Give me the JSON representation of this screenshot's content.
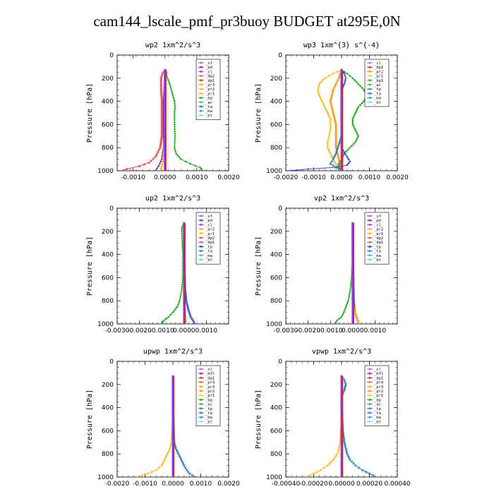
{
  "page_title": "cam144_lscale_pmf_pr3buoy  BUDGET at295E,0N",
  "colors": {
    "sf": "#6a3aa0",
    "pd": "#7b1fa2",
    "cl": "#9b30ff",
    "mfl": "#7b1fa2",
    "dp1": "#c62828",
    "dp2": "#e53935",
    "pr1": "#ffb300",
    "pr2": "#ff8c00",
    "pr3": "#ffa000",
    "pr4": "#d84315",
    "bp": "#1aa01a",
    "ac": "#2ea82e",
    "tp": "#1f3fbf",
    "ta": "#1f77b4",
    "ma": "#2b8fbf",
    "bt": "#40e0e0",
    "bp1": "#2aa52a"
  },
  "chart_data": [
    {
      "type": "line",
      "title": "wp2  1xm^2/s^3",
      "ylabel": "Pressure [hPa]",
      "xlim": [
        -0.0015,
        0.002
      ],
      "ylim": [
        1000,
        0
      ],
      "xticks": [
        -0.001,
        0.0,
        0.001,
        0.002
      ],
      "xticklabels": [
        "-0.0010",
        "0.0000",
        "0.0010",
        "0.0020"
      ],
      "yticks": [
        0,
        200,
        400,
        600,
        800,
        1000
      ],
      "legend": [
        "_sf",
        "_pd",
        "_cl",
        "_dp2",
        "_dp1",
        "_pr3",
        "_pr2",
        "_pr1",
        "_bp",
        "_ac",
        "_ta",
        "_ma",
        "_bt"
      ],
      "legend_position": "top-right",
      "series": [
        {
          "name": "_pd",
          "color_key": "pd",
          "p": [
            130,
            160,
            200,
            300,
            400,
            500,
            600,
            700,
            800,
            900,
            960,
            1000
          ],
          "x": [
            3e-05,
            5e-05,
            0.0,
            -3e-05,
            -5e-05,
            -5e-05,
            -5e-05,
            -5e-05,
            -5e-05,
            -0.0001,
            -0.0002,
            -0.0003
          ]
        },
        {
          "name": "_dp2",
          "color_key": "dp2",
          "p": [
            130,
            160,
            200,
            300,
            400,
            500,
            600,
            700,
            800,
            880,
            930,
            960,
            985,
            1000
          ],
          "x": [
            0.0,
            -8e-05,
            -0.00012,
            -0.00012,
            -0.0001,
            -0.0001,
            -0.0001,
            -0.0001,
            -0.00015,
            -0.0003,
            -0.0005,
            -0.0008,
            -0.0012,
            -0.0014
          ]
        },
        {
          "name": "_pr1",
          "color_key": "pr1",
          "p": [
            130,
            200,
            400,
            600,
            800,
            900,
            960,
            1000
          ],
          "x": [
            0.0,
            0.0,
            0.0,
            0.0,
            -3e-05,
            -5e-05,
            -0.0001,
            -0.00015
          ]
        },
        {
          "name": "_bp",
          "color_key": "bp",
          "p": [
            130,
            160,
            200,
            250,
            300,
            350,
            400,
            450,
            500,
            600,
            700,
            800,
            850,
            900,
            940,
            970,
            1000
          ],
          "x": [
            0.0,
            3e-05,
            8e-05,
            0.00015,
            0.0002,
            0.00025,
            0.0003,
            0.00032,
            0.0003,
            0.0003,
            0.00032,
            0.0003,
            0.00035,
            0.0005,
            0.0008,
            0.0011,
            0.0012
          ]
        },
        {
          "name": "_ta",
          "color_key": "ta",
          "p": [
            130,
            400,
            800,
            950,
            1000
          ],
          "x": [
            0.0,
            0.0,
            0.0,
            0.0,
            0.0
          ]
        },
        {
          "name": "_bt",
          "color_key": "bt",
          "p": [
            130,
            400,
            800,
            1000
          ],
          "x": [
            0.0,
            0.0,
            0.0,
            0.0
          ]
        },
        {
          "name": "_sf",
          "color_key": "sf",
          "p": [
            130,
            400,
            700,
            1000
          ],
          "x": [
            0.0,
            0.0,
            0.0,
            0.0
          ]
        }
      ]
    },
    {
      "type": "line",
      "title": "wp3  1xm^{3} s^{-4}",
      "ylabel": "Pressure [hPa]",
      "xlim": [
        -0.002,
        0.002
      ],
      "ylim": [
        1000,
        0
      ],
      "xticks": [
        -0.002,
        -0.001,
        0.0,
        0.001,
        0.002
      ],
      "xticklabels": [
        "-0.0020",
        "-0.0010",
        "0.0000",
        "0.0010",
        "0.0020"
      ],
      "yticks": [
        0,
        200,
        400,
        600,
        800,
        1000
      ],
      "legend": [
        "_cl",
        "_dp1",
        "_pr2",
        "_pr1",
        "_bp1",
        "_ac",
        "_tp",
        "_ta",
        "_ma",
        "_bt"
      ],
      "legend_position": "top-right",
      "series": [
        {
          "name": "_pr1",
          "color_key": "pr1",
          "p": [
            130,
            160,
            200,
            250,
            300,
            350,
            400,
            450,
            500,
            550,
            600,
            650,
            700,
            750,
            800,
            850,
            900,
            940,
            970,
            1000
          ],
          "x": [
            0.0,
            -0.0003,
            -0.0006,
            -0.0008,
            -0.00085,
            -0.0008,
            -0.0007,
            -0.0006,
            -0.0005,
            -0.0004,
            -0.0004,
            -0.0004,
            -0.00045,
            -0.0005,
            -0.0005,
            -0.0004,
            -0.0003,
            -0.0002,
            -0.0001,
            0.0
          ]
        },
        {
          "name": "_pr2",
          "color_key": "pr2",
          "p": [
            130,
            200,
            300,
            400,
            500,
            600,
            700,
            800,
            900,
            1000
          ],
          "x": [
            0.0,
            -0.0001,
            -0.0003,
            -0.0004,
            -0.0003,
            -0.0002,
            -0.0002,
            -0.0002,
            -0.0001,
            0.0
          ]
        },
        {
          "name": "_ac",
          "color_key": "ac",
          "p": [
            130,
            160,
            200,
            250,
            300,
            350,
            400,
            450,
            500,
            550,
            600,
            650,
            700,
            750,
            800,
            850,
            900,
            940,
            970,
            1000
          ],
          "x": [
            0.0,
            0.0002,
            0.0004,
            0.0006,
            0.0008,
            0.0009,
            0.0008,
            0.0006,
            0.0005,
            0.0004,
            0.0004,
            0.0005,
            0.0006,
            0.0005,
            0.0003,
            0.0001,
            0.0,
            -0.0001,
            -0.0001,
            0.0
          ]
        },
        {
          "name": "_tp",
          "color_key": "tp",
          "p": [
            130,
            160,
            200,
            250,
            300,
            400,
            500,
            600,
            700,
            800,
            880,
            920,
            950,
            970,
            985,
            1000
          ],
          "x": [
            0.0,
            0.0001,
            0.00015,
            0.0001,
            0.0,
            0.0,
            0.0,
            0.0,
            0.0,
            0.0,
            0.0002,
            0.0003,
            0.0002,
            -0.0002,
            -0.0012,
            -0.0019
          ]
        },
        {
          "name": "_ta",
          "color_key": "ta",
          "p": [
            130,
            400,
            700,
            850,
            900,
            940,
            970,
            1000
          ],
          "x": [
            0.0,
            0.0,
            0.0,
            -0.0002,
            -0.0003,
            -0.0004,
            -0.0002,
            0.0
          ]
        },
        {
          "name": "_dp1",
          "color_key": "dp1",
          "p": [
            130,
            400,
            800,
            1000
          ],
          "x": [
            0.0,
            0.0,
            0.0,
            0.0
          ]
        },
        {
          "name": "_cl",
          "color_key": "cl",
          "p": [
            130,
            400,
            800,
            1000
          ],
          "x": [
            0.0,
            0.0,
            0.0,
            0.0
          ]
        }
      ]
    },
    {
      "type": "line",
      "title": "up2  1xm^2/s^3",
      "ylabel": "Pressure [hPa]",
      "xlim": [
        -0.003,
        0.002
      ],
      "ylim": [
        1000,
        0
      ],
      "xticks": [
        -0.003,
        -0.002,
        -0.001,
        0.0,
        0.001
      ],
      "xticklabels": [
        "-0.0030",
        "-0.0020",
        "-0.0010",
        "0.0000",
        "0.0010"
      ],
      "yticks": [
        0,
        200,
        400,
        600,
        800,
        1000
      ],
      "legend": [
        "_sf",
        "_pd",
        "_cl",
        "_pr2",
        "_pr1",
        "_dp2",
        "_dp1",
        "_tp",
        "_ta",
        "_ma",
        "_bt"
      ],
      "legend_position": "top-right",
      "series": [
        {
          "name": "_dp2",
          "color_key": "bp",
          "p": [
            130,
            170,
            200,
            400,
            600,
            700,
            800,
            850,
            900,
            940,
            970,
            1000
          ],
          "x": [
            0.0,
            -0.0001,
            -0.0001,
            -5e-05,
            -5e-05,
            -0.0001,
            -0.0002,
            -0.0003,
            -0.0005,
            -0.0007,
            -0.0009,
            -0.001
          ]
        },
        {
          "name": "_tp",
          "color_key": "tp",
          "p": [
            130,
            400,
            700,
            800,
            880,
            940,
            970,
            1000
          ],
          "x": [
            0.0,
            0.0,
            5e-05,
            0.0001,
            0.0002,
            0.0003,
            0.0004,
            0.0005
          ]
        },
        {
          "name": "_pr1",
          "color_key": "pr1",
          "p": [
            130,
            400,
            700,
            900,
            1000
          ],
          "x": [
            0.0,
            0.0,
            0.0,
            5e-05,
            0.0001
          ]
        },
        {
          "name": "_pd",
          "color_key": "dp1",
          "p": [
            130,
            400,
            700,
            900,
            1000
          ],
          "x": [
            0.0,
            0.0,
            0.0,
            0.0,
            0.0
          ]
        }
      ]
    },
    {
      "type": "line",
      "title": "vp2  1xm^2/s^3",
      "ylabel": "Pressure [hPa]",
      "xlim": [
        -0.003,
        0.002
      ],
      "ylim": [
        1000,
        0
      ],
      "xticks": [
        -0.003,
        -0.002,
        -0.001,
        0.0,
        0.001
      ],
      "xticklabels": [
        "-0.0030",
        "-0.0020",
        "-0.0010",
        "0.0000",
        "0.0010"
      ],
      "yticks": [
        0,
        200,
        400,
        600,
        800,
        1000
      ],
      "legend": [
        "_sf",
        "_pd",
        "_cl",
        "_pr2",
        "_pr1",
        "_dp2",
        "_dp1",
        "_tp",
        "_ta",
        "_ma",
        "_bt"
      ],
      "legend_position": "top-right",
      "series": [
        {
          "name": "_dp2",
          "color_key": "bp",
          "p": [
            130,
            400,
            600,
            700,
            800,
            850,
            900,
            940,
            970,
            1000
          ],
          "x": [
            0.0,
            0.0,
            -5e-05,
            -0.0001,
            -0.0002,
            -0.0003,
            -0.0004,
            -0.0005,
            -0.0007,
            -0.0008
          ]
        },
        {
          "name": "_tp",
          "color_key": "tp",
          "p": [
            130,
            400,
            800,
            900,
            960,
            1000
          ],
          "x": [
            0.0,
            0.0,
            5e-05,
            0.0001,
            0.0002,
            0.0003
          ]
        },
        {
          "name": "_pr1",
          "color_key": "pr1",
          "p": [
            130,
            400,
            800,
            900,
            960,
            1000
          ],
          "x": [
            0.0,
            0.0,
            0.0,
            0.0001,
            0.0002,
            0.0003
          ]
        },
        {
          "name": "_pd",
          "color_key": "dp1",
          "p": [
            130,
            400,
            800,
            1000
          ],
          "x": [
            0.0,
            0.0,
            0.0,
            0.0
          ]
        }
      ]
    },
    {
      "type": "line",
      "title": "upwp  1xm^2/s^3",
      "ylabel": "Pressure [hPa]",
      "xlim": [
        -0.002,
        0.002
      ],
      "ylim": [
        1000,
        0
      ],
      "xticks": [
        -0.002,
        -0.001,
        0.0,
        0.001,
        0.002
      ],
      "xticklabels": [
        "-0.0020",
        "-0.0010",
        "0.0000",
        "0.0010",
        "0.0020"
      ],
      "yticks": [
        0,
        200,
        400,
        600,
        800,
        1000
      ],
      "legend": [
        "_cl",
        "_mfl",
        "_dp1",
        "_pr4",
        "_pr3",
        "_pr2",
        "_pr1",
        "_bp",
        "_ac",
        "_tp",
        "_ta",
        "_ma",
        "_bt"
      ],
      "legend_position": "top-right",
      "series": [
        {
          "name": "_pr1",
          "color_key": "pr1",
          "p": [
            130,
            400,
            700,
            750,
            800,
            850,
            900,
            940,
            970,
            1000
          ],
          "x": [
            0.0,
            0.0,
            -5e-05,
            -0.0001,
            -0.0002,
            -0.0003,
            -0.0004,
            -0.0006,
            -0.0009,
            -0.0013
          ]
        },
        {
          "name": "_ta",
          "color_key": "ta",
          "p": [
            130,
            400,
            700,
            750,
            800,
            850,
            900,
            940,
            970,
            1000
          ],
          "x": [
            0.0,
            0.0,
            5e-05,
            0.0001,
            0.0002,
            0.0003,
            0.0004,
            0.0005,
            0.0006,
            0.0008
          ]
        },
        {
          "name": "_pr4",
          "color_key": "dp1",
          "p": [
            130,
            400,
            700,
            1000
          ],
          "x": [
            0.0,
            0.0,
            0.0,
            0.0
          ]
        },
        {
          "name": "_cl",
          "color_key": "cl",
          "p": [
            130,
            400,
            700,
            1000
          ],
          "x": [
            0.0,
            0.0,
            0.0,
            0.0
          ]
        }
      ]
    },
    {
      "type": "line",
      "title": "vpwp  1xm^2/s^3",
      "ylabel": "Pressure [hPa]",
      "xlim": [
        -0.0004,
        0.0004
      ],
      "ylim": [
        1000,
        0
      ],
      "xticks": [
        -0.0004,
        -0.0002,
        0.0,
        0.0002,
        0.0004
      ],
      "xticklabels": [
        "-0.00040",
        "-0.00020",
        "0.00000",
        "0.00020",
        "0.00040"
      ],
      "yticks": [
        0,
        200,
        400,
        600,
        800,
        1000
      ],
      "legend": [
        "_cl",
        "_mfl",
        "_dp1",
        "_pr4",
        "_pr3",
        "_pr2",
        "_pr1",
        "_bp",
        "_ac",
        "_tp",
        "_ta",
        "_ma",
        "_bt"
      ],
      "legend_position": "top-right",
      "series": [
        {
          "name": "_pr1",
          "color_key": "pr1",
          "p": [
            130,
            400,
            700,
            800,
            850,
            900,
            940,
            970,
            1000
          ],
          "x": [
            0.0,
            0.0,
            -1e-05,
            -3e-05,
            -6e-05,
            -0.0001,
            -0.00015,
            -0.0002,
            -0.00025
          ]
        },
        {
          "name": "_ta",
          "color_key": "ta",
          "p": [
            130,
            160,
            200,
            250,
            300,
            400,
            600,
            700,
            800,
            850,
            900,
            940,
            970,
            1000
          ],
          "x": [
            0.0,
            2e-05,
            3e-05,
            2e-05,
            0.0,
            0.0,
            1e-05,
            2e-05,
            4e-05,
            6e-05,
            0.0001,
            0.00015,
            0.0002,
            0.00025
          ]
        },
        {
          "name": "_pr4",
          "color_key": "dp1",
          "p": [
            130,
            400,
            700,
            1000
          ],
          "x": [
            0.0,
            0.0,
            0.0,
            0.0
          ]
        },
        {
          "name": "_cl",
          "color_key": "cl",
          "p": [
            130,
            400,
            700,
            1000
          ],
          "x": [
            0.0,
            0.0,
            0.0,
            0.0
          ]
        }
      ]
    }
  ]
}
